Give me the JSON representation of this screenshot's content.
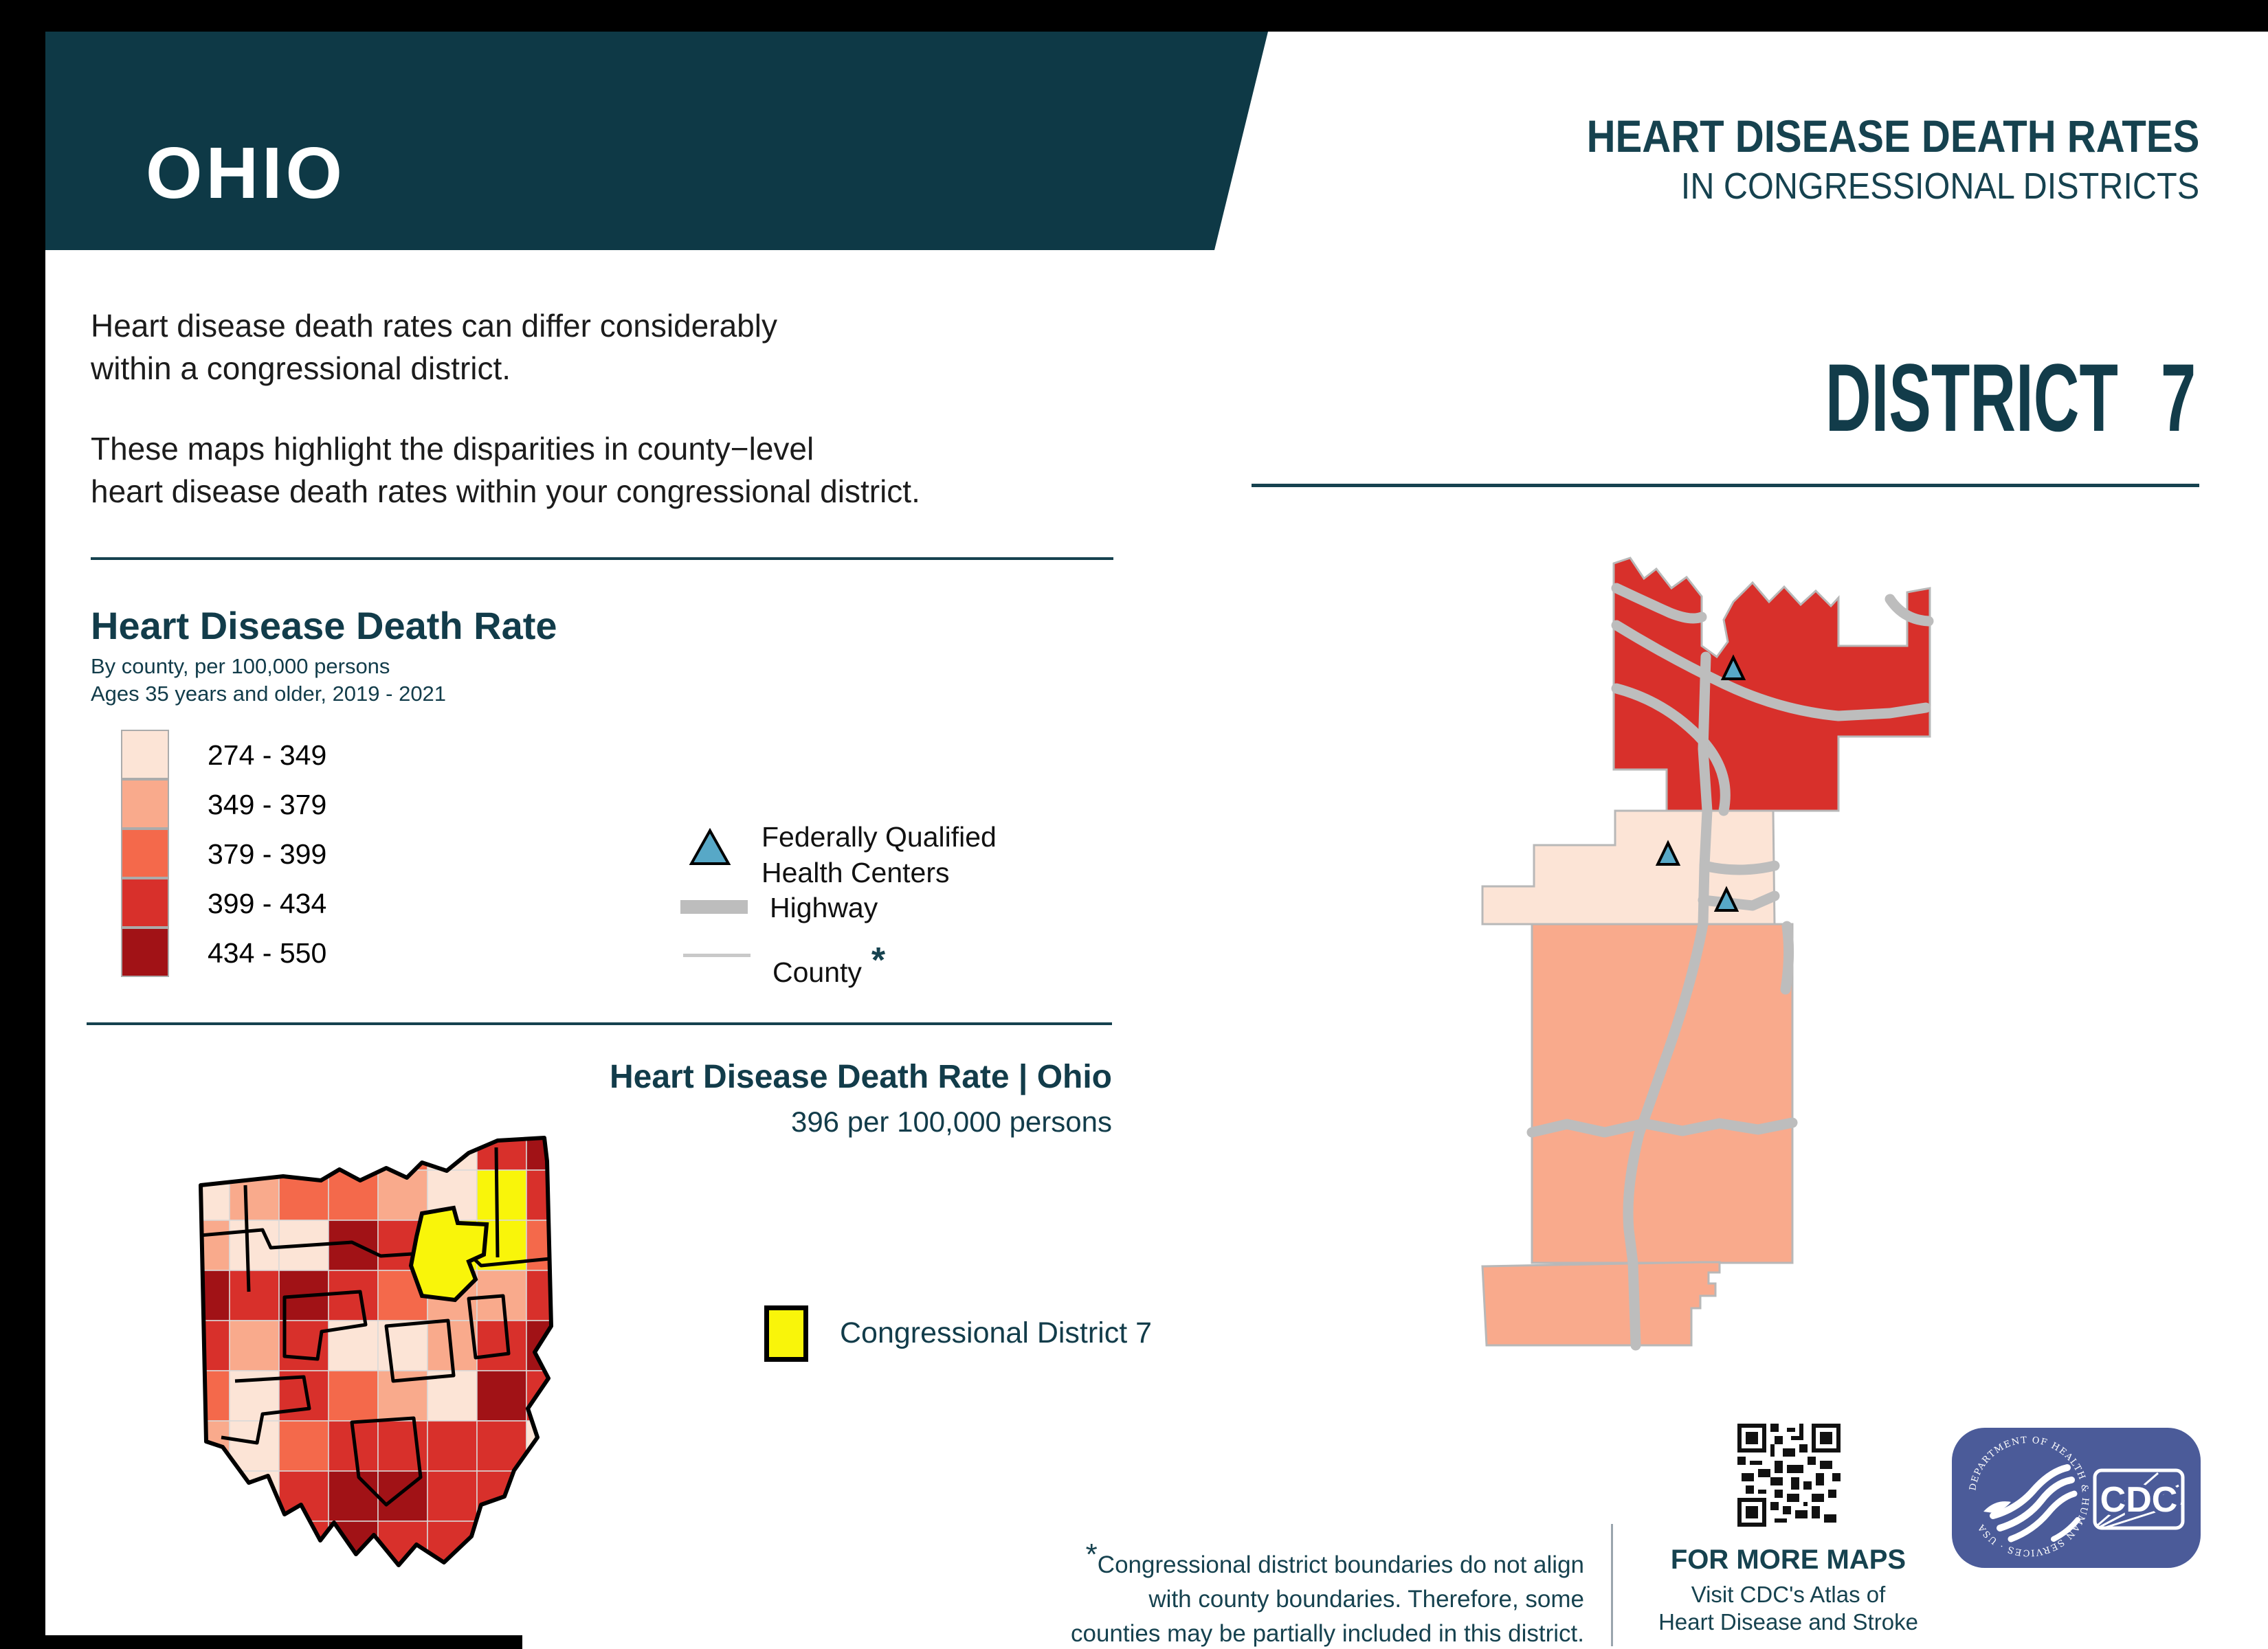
{
  "banner": {
    "state": "OHIO",
    "color": "#0e3946"
  },
  "header": {
    "line1": "HEART DISEASE DEATH RATES",
    "line2": "IN CONGRESSIONAL DISTRICTS"
  },
  "intro": {
    "p1_lines": [
      "Heart disease death rates can differ considerably",
      "within a congressional district."
    ],
    "p2_lines": [
      "These maps highlight the disparities in county−level",
      "heart disease death rates within your congressional district."
    ]
  },
  "legend": {
    "title": "Heart Disease Death Rate",
    "subtitle_lines": [
      "By county, per 100,000 persons",
      "Ages 35 years and older, 2019 - 2021"
    ],
    "classes": [
      {
        "range": "274 - 349",
        "color": "#fce4d6"
      },
      {
        "range": "349 - 379",
        "color": "#f9aa8c"
      },
      {
        "range": "379 - 399",
        "color": "#f4694b"
      },
      {
        "range": "399 - 434",
        "color": "#d8302b"
      },
      {
        "range": "434 - 550",
        "color": "#a11216"
      }
    ],
    "fqhc_label_lines": [
      "Federally Qualified",
      "Health Centers"
    ],
    "fqhc_color": "#57a8c7",
    "highway_label": "Highway",
    "county_label": "County",
    "county_asterisk": "*"
  },
  "state_summary": {
    "title": "Heart Disease Death Rate | Ohio",
    "value": "396 per 100,000 persons"
  },
  "district": {
    "title": "DISTRICT 7",
    "number": "7"
  },
  "district_legend": {
    "label": "Congressional District 7",
    "color": "#f9f50a"
  },
  "footnote": {
    "asterisk": "*",
    "lines": [
      "Congressional district boundaries do not align",
      "with county boundaries. Therefore, some",
      "counties may be partially included in this district."
    ]
  },
  "more_maps": {
    "heading": "FOR MORE MAPS",
    "lines": [
      "Visit CDC's Atlas of",
      "Heart Disease and Stroke"
    ]
  },
  "logo": {
    "ring_text": "DEPARTMENT OF HEALTH & HUMAN SERVICES · USA",
    "cdc": "CDC"
  },
  "state_map": {
    "palette": {
      "1": "#fce4d6",
      "2": "#f9aa8c",
      "3": "#f4694b",
      "4": "#d8302b",
      "5": "#a11216",
      "Y": "#f9f50a"
    },
    "grid": [
      "13443145",
      "123321Y4",
      "21154YY3",
      "54543224",
      "42411245",
      "31432154",
      "21344441",
      "21455445",
      "12454454"
    ],
    "district7_color": "#f9f50a"
  },
  "colors": {
    "teal_text": "#16424f",
    "highway": "#bdbdbd",
    "county_line": "#c9c9c9",
    "hhs_blue": "#4b5b99",
    "black_frame": "#000000"
  }
}
